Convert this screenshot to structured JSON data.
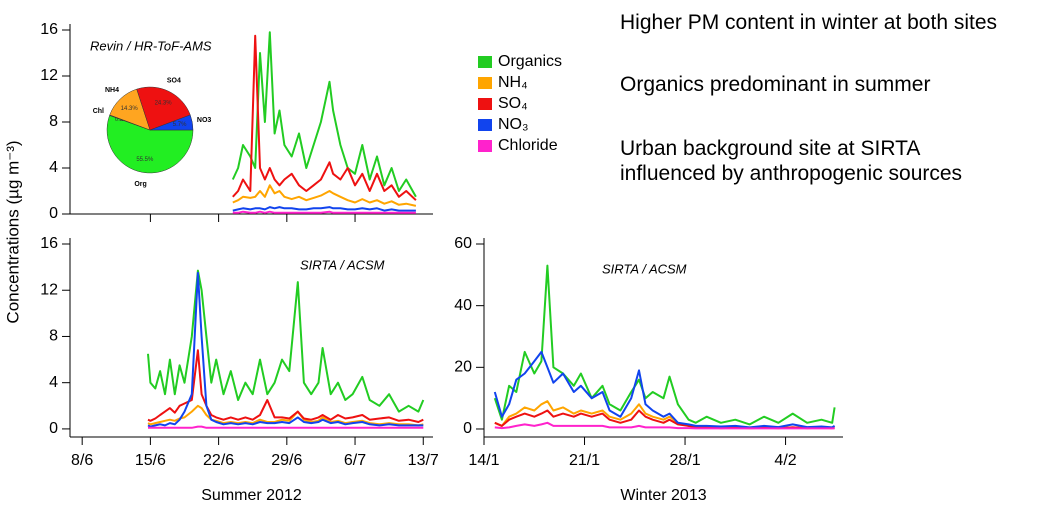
{
  "chart_data": [
    {
      "type": "line",
      "title": "Revin / HR-ToF-AMS",
      "xlim": [
        "2012-06-06T18:00",
        "2012-07-14T00:00"
      ],
      "ylim": [
        0,
        16
      ],
      "yticks": [
        0,
        4,
        8,
        12,
        16
      ],
      "xticks": [
        "2012-06-15T00:00",
        "2012-06-22T00:00",
        "2012-06-29T00:00",
        "2012-07-06T00:00"
      ],
      "x": [
        "2012-06-23T11:00",
        "2012-06-24T00:00",
        "2012-06-24T12:00",
        "2012-06-25T06:00",
        "2012-06-25T18:00",
        "2012-06-26T06:00",
        "2012-06-26T18:00",
        "2012-06-27T06:00",
        "2012-06-27T18:00",
        "2012-06-28T06:00",
        "2012-06-28T18:00",
        "2012-06-29T12:00",
        "2012-06-30T06:00",
        "2012-07-01T00:00",
        "2012-07-01T18:00",
        "2012-07-02T12:00",
        "2012-07-03T09:00",
        "2012-07-03T18:00",
        "2012-07-04T12:00",
        "2012-07-05T06:00",
        "2012-07-06T00:00",
        "2012-07-06T18:00",
        "2012-07-07T12:00",
        "2012-07-08T06:00",
        "2012-07-09T00:00",
        "2012-07-09T18:00",
        "2012-07-10T12:00",
        "2012-07-11T06:00",
        "2012-07-12T06:00"
      ],
      "series": [
        {
          "name": "Organics",
          "color": "#22cc22",
          "values": [
            3,
            4,
            6,
            5,
            4,
            14,
            8,
            15.8,
            7,
            9,
            6,
            5,
            7,
            4,
            6,
            8,
            11.5,
            9,
            6,
            4,
            3.5,
            6,
            3,
            5,
            2.5,
            4,
            2,
            3,
            1.5
          ]
        },
        {
          "name": "NH₄",
          "color": "#ffa500",
          "values": [
            1,
            1.2,
            1.5,
            1.4,
            1.5,
            2,
            1.5,
            2.5,
            1.8,
            2,
            1.5,
            1.3,
            1.5,
            1.2,
            1.4,
            1.6,
            2,
            1.8,
            1.5,
            1.2,
            1,
            1.3,
            1,
            1.2,
            0.9,
            1.1,
            0.8,
            0.9,
            0.7
          ]
        },
        {
          "name": "SO₄",
          "color": "#ee1111",
          "values": [
            1.5,
            2,
            3,
            2,
            15.5,
            4,
            3,
            4,
            3,
            2.5,
            3,
            3.5,
            2.5,
            2,
            2.5,
            3,
            4.5,
            3.5,
            3,
            4,
            2.5,
            3.5,
            2,
            3.5,
            2,
            2.5,
            1.5,
            2,
            1.2
          ]
        },
        {
          "name": "NO₃",
          "color": "#1144ee",
          "values": [
            0.3,
            0.4,
            0.5,
            0.4,
            0.5,
            0.5,
            0.4,
            0.6,
            0.5,
            0.6,
            0.5,
            0.5,
            0.4,
            0.4,
            0.5,
            0.5,
            0.6,
            0.5,
            0.5,
            0.4,
            0.4,
            0.5,
            0.4,
            0.5,
            0.3,
            0.4,
            0.3,
            0.3,
            0.3
          ]
        },
        {
          "name": "Chloride",
          "color": "#ff22cc",
          "values": [
            0.1,
            0.1,
            0.2,
            0.1,
            0.1,
            0.2,
            0.1,
            0.2,
            0.1,
            0.1,
            0.1,
            0.1,
            0.1,
            0.1,
            0.1,
            0.1,
            0.2,
            0.1,
            0.1,
            0.1,
            0.1,
            0.1,
            0.1,
            0.1,
            0.1,
            0.1,
            0.1,
            0.1,
            0.1
          ]
        }
      ]
    },
    {
      "type": "line",
      "title": "SIRTA / ACSM",
      "x_label": "Summer 2012",
      "xlim": [
        "2012-06-06T18:00",
        "2012-07-14T00:00"
      ],
      "ylim": [
        -0.7,
        16
      ],
      "yticks": [
        0,
        4,
        8,
        12,
        16
      ],
      "xticks": [
        {
          "value": "2012-06-08T00:00",
          "label": "8/6"
        },
        {
          "value": "2012-06-15T00:00",
          "label": "15/6"
        },
        {
          "value": "2012-06-22T00:00",
          "label": "22/6"
        },
        {
          "value": "2012-06-29T00:00",
          "label": "29/6"
        },
        {
          "value": "2012-07-06T00:00",
          "label": "6/7"
        },
        {
          "value": "2012-07-13T00:00",
          "label": "13/7"
        }
      ],
      "x": [
        "2012-06-14T18:00",
        "2012-06-15T00:00",
        "2012-06-15T12:00",
        "2012-06-16T00:00",
        "2012-06-16T12:00",
        "2012-06-17T00:00",
        "2012-06-17T12:00",
        "2012-06-18T00:00",
        "2012-06-18T12:00",
        "2012-06-19T06:00",
        "2012-06-19T21:00",
        "2012-06-20T06:00",
        "2012-06-20T18:00",
        "2012-06-21T06:00",
        "2012-06-21T18:00",
        "2012-06-22T12:00",
        "2012-06-23T06:00",
        "2012-06-24T00:00",
        "2012-06-24T18:00",
        "2012-06-25T12:00",
        "2012-06-26T06:00",
        "2012-06-27T00:00",
        "2012-06-27T18:00",
        "2012-06-28T12:00",
        "2012-06-29T06:00",
        "2012-06-30T03:00",
        "2012-06-30T18:00",
        "2012-07-01T12:00",
        "2012-07-02T06:00",
        "2012-07-02T16:00",
        "2012-07-03T12:00",
        "2012-07-04T06:00",
        "2012-07-05T00:00",
        "2012-07-05T18:00",
        "2012-07-06T18:00",
        "2012-07-07T12:00",
        "2012-07-08T12:00",
        "2012-07-09T12:00",
        "2012-07-10T12:00",
        "2012-07-11T12:00",
        "2012-07-12T12:00",
        "2012-07-13T00:00"
      ],
      "series": [
        {
          "name": "Organics",
          "color": "#22cc22",
          "values": [
            6.5,
            4,
            3.5,
            5,
            3,
            6,
            3,
            5.5,
            4,
            8,
            13.7,
            12,
            8,
            4,
            6,
            3,
            5,
            2.5,
            4,
            3,
            6,
            3,
            4,
            6,
            5,
            12.7,
            4,
            3,
            4,
            7,
            3,
            4,
            2.5,
            3,
            4.5,
            2.5,
            2,
            3,
            1.5,
            2,
            1.5,
            2.5
          ]
        },
        {
          "name": "NH₄",
          "color": "#ffa500",
          "values": [
            0.5,
            0.4,
            0.5,
            0.6,
            0.7,
            0.8,
            0.7,
            0.9,
            1,
            1.5,
            2,
            1.8,
            1.2,
            0.8,
            0.7,
            0.5,
            0.6,
            0.5,
            0.6,
            0.5,
            0.8,
            0.6,
            0.6,
            0.8,
            0.7,
            1.5,
            0.8,
            0.6,
            0.7,
            1,
            0.6,
            0.7,
            0.5,
            0.6,
            0.7,
            0.5,
            0.4,
            0.5,
            0.4,
            0.4,
            0.3,
            0.4
          ]
        },
        {
          "name": "SO₄",
          "color": "#ee1111",
          "values": [
            0.8,
            0.7,
            0.9,
            1.2,
            1.5,
            1.8,
            1.4,
            2,
            2.2,
            2.5,
            6.8,
            3,
            2,
            1.2,
            1,
            0.8,
            1,
            0.8,
            1,
            0.8,
            1.2,
            2.5,
            1,
            1,
            0.9,
            1.5,
            0.9,
            0.8,
            1,
            1.2,
            0.8,
            1.2,
            0.9,
            1,
            1.2,
            0.8,
            0.9,
            1,
            0.7,
            0.8,
            0.6,
            0.8
          ]
        },
        {
          "name": "NO₃",
          "color": "#1144ee",
          "values": [
            0.3,
            0.2,
            0.3,
            0.4,
            0.3,
            0.5,
            0.4,
            0.8,
            1.5,
            3,
            13.5,
            8,
            2,
            0.8,
            0.6,
            0.4,
            0.5,
            0.4,
            0.5,
            0.4,
            0.6,
            0.5,
            0.5,
            0.6,
            0.5,
            1,
            0.6,
            0.5,
            0.6,
            0.8,
            0.5,
            0.6,
            0.4,
            0.5,
            0.6,
            0.4,
            0.3,
            0.4,
            0.3,
            0.3,
            0.3,
            0.3
          ]
        },
        {
          "name": "Chloride",
          "color": "#ff22cc",
          "values": [
            0.1,
            0.1,
            0.1,
            0.1,
            0.1,
            0.1,
            0.1,
            0.1,
            0.1,
            0.1,
            0.2,
            0.2,
            0.1,
            0.1,
            0.1,
            0.1,
            0.1,
            0.1,
            0.1,
            0.1,
            0.1,
            0.1,
            0.1,
            0.1,
            0.1,
            0.1,
            0.1,
            0.1,
            0.1,
            0.1,
            0.1,
            0.1,
            0.1,
            0.1,
            0.1,
            0.1,
            0.1,
            0.1,
            0.1,
            0.1,
            0.1,
            0.1
          ]
        }
      ]
    },
    {
      "type": "line",
      "title": "SIRTA / ACSM",
      "x_label": "Winter 2013",
      "xlim": [
        "2013-01-14T00:00",
        "2013-02-08T00:00"
      ],
      "ylim": [
        -2.6,
        60
      ],
      "yticks": [
        0,
        20,
        40,
        60
      ],
      "xticks": [
        {
          "value": "2013-01-14T00:00",
          "label": "14/1"
        },
        {
          "value": "2013-01-21T00:00",
          "label": "21/1"
        },
        {
          "value": "2013-01-28T00:00",
          "label": "28/1"
        },
        {
          "value": "2013-02-04T00:00",
          "label": "4/2"
        }
      ],
      "x": [
        "2013-01-14T18:00",
        "2013-01-15T06:00",
        "2013-01-15T18:00",
        "2013-01-16T06:00",
        "2013-01-16T20:00",
        "2013-01-17T12:00",
        "2013-01-18T00:00",
        "2013-01-18T10:00",
        "2013-01-18T20:00",
        "2013-01-19T12:00",
        "2013-01-20T06:00",
        "2013-01-20T18:00",
        "2013-01-21T12:00",
        "2013-01-22T06:00",
        "2013-01-22T18:00",
        "2013-01-23T12:00",
        "2013-01-24T06:00",
        "2013-01-24T19:00",
        "2013-01-25T06:00",
        "2013-01-25T18:00",
        "2013-01-26T12:00",
        "2013-01-26T22:00",
        "2013-01-27T12:00",
        "2013-01-28T06:00",
        "2013-01-28T18:00",
        "2013-01-29T12:00",
        "2013-01-30T12:00",
        "2013-01-31T12:00",
        "2013-02-01T12:00",
        "2013-02-02T12:00",
        "2013-02-03T12:00",
        "2013-02-04T12:00",
        "2013-02-05T12:00",
        "2013-02-06T12:00",
        "2013-02-07T06:00",
        "2013-02-07T10:00"
      ],
      "series": [
        {
          "name": "Organics",
          "color": "#22cc22",
          "values": [
            10,
            3,
            14,
            12,
            25,
            18,
            22,
            53,
            20,
            18,
            14,
            18,
            10,
            14,
            8,
            6,
            12,
            16,
            10,
            12,
            10,
            17,
            8,
            3,
            2,
            4,
            2,
            3,
            1.5,
            4,
            2,
            5,
            2,
            3,
            2,
            7
          ]
        },
        {
          "name": "NH₄",
          "color": "#ffa500",
          "values": [
            2,
            1,
            4,
            5,
            7,
            6,
            8,
            9,
            6,
            7,
            5,
            6,
            5,
            6,
            4,
            3,
            5,
            8,
            5,
            4,
            3,
            4,
            2,
            1,
            0.5,
            0.5,
            0.3,
            0.4,
            0.3,
            0.4,
            0.3,
            0.5,
            0.3,
            0.4,
            0.3,
            0.5
          ]
        },
        {
          "name": "SO₄",
          "color": "#ee1111",
          "values": [
            2,
            1,
            3,
            4,
            5,
            4,
            5,
            6,
            4,
            5,
            4,
            5,
            4,
            5,
            3,
            2,
            3,
            6,
            4,
            3,
            2,
            3,
            1.5,
            1,
            0.5,
            0.5,
            0.3,
            0.4,
            0.3,
            0.4,
            0.3,
            0.5,
            0.3,
            0.4,
            0.3,
            0.5
          ]
        },
        {
          "name": "NO₃",
          "color": "#1144ee",
          "values": [
            12,
            4,
            8,
            16,
            18,
            22,
            25,
            20,
            15,
            18,
            12,
            14,
            10,
            12,
            6,
            4,
            10,
            19,
            8,
            6,
            4,
            5,
            2,
            1.5,
            1,
            1,
            0.8,
            1,
            0.5,
            1,
            0.6,
            1.5,
            0.6,
            0.8,
            0.5,
            1
          ]
        },
        {
          "name": "Chloride",
          "color": "#ff22cc",
          "values": [
            0.5,
            0.3,
            0.5,
            1,
            1.5,
            1,
            1.5,
            2,
            1,
            1,
            1,
            1,
            1,
            1,
            0.5,
            0.5,
            0.5,
            1,
            0.5,
            0.5,
            0.5,
            0.5,
            0.3,
            0.3,
            0.2,
            0.2,
            0.2,
            0.2,
            0.2,
            0.2,
            0.2,
            0.2,
            0.2,
            0.2,
            0.2,
            0.2
          ]
        }
      ]
    },
    {
      "type": "pie",
      "categories": [
        "Org",
        "Chl",
        "NH4",
        "SO4",
        "NO3"
      ],
      "values": [
        55.5,
        0.2,
        14.3,
        24.3,
        5.7
      ],
      "value_labels": [
        "55.5%",
        "0.2%",
        "14.3%",
        "24.3%",
        "5.7%"
      ],
      "colors": [
        "#22ee22",
        "#ff22cc",
        "#ffa520",
        "#ee1111",
        "#1144ee"
      ]
    }
  ],
  "y_label": "Concentrations (µg m⁻³)",
  "notes": [
    "Higher PM content in winter at both sites",
    "Organics predominant in summer",
    "Urban background site at SIRTA influenced by anthropogenic sources"
  ]
}
